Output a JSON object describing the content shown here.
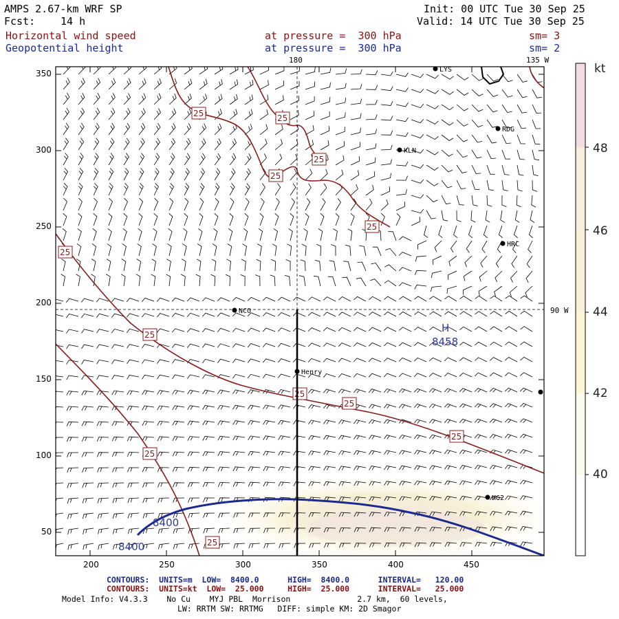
{
  "header": {
    "model": "AMPS 2.67-km WRF SP",
    "forecast_label": "Fcst:",
    "forecast_value": "14 h",
    "init": "Init: 00 UTC Tue 30 Sep 25",
    "valid": "Valid: 14 UTC Tue 30 Sep 25",
    "field1_name": "Horizontal wind speed",
    "field1_level": "at pressure =  300 hPa",
    "field1_sm": "sm= 3",
    "field2_name": "Geopotential height",
    "field2_level": "at pressure =  300 hPa",
    "field2_sm": "sm= 2"
  },
  "map": {
    "lon_label_top": "180",
    "lon_label_135": "135 W",
    "lon_label_90": "90 W",
    "stations": [
      "LYS",
      "RDG",
      "KLN",
      "HRC",
      "NCO",
      "Henry",
      "HG2"
    ],
    "high_label": "H",
    "high_value": "8458",
    "height_contour_labels": [
      "8400",
      "8400"
    ],
    "wind_contour_label": "25",
    "x_ticks": [
      "200",
      "250",
      "300",
      "350",
      "400",
      "450"
    ],
    "y_ticks": [
      "350",
      "300",
      "250",
      "200",
      "150",
      "100",
      "50"
    ]
  },
  "colorbar": {
    "unit": "kt",
    "labels": [
      "48",
      "46",
      "44",
      "42",
      "40"
    ],
    "colors": [
      "#f3dde3",
      "#f7eedd",
      "#f8f0d8",
      "#fbf6d6",
      "#fcfae8",
      "#fdfdf2",
      "#ffffff"
    ]
  },
  "footer": {
    "row1": "CONTOURS:  UNITS=m  LOW=  8400.0      HIGH=  8400.0      INTERVAL=   120.00",
    "row2": "CONTOURS:  UNITS=kt  LOW=  25.000     HIGH=  25.000      INTERVAL=   25.000",
    "model_info": "Model Info: V4.3.3    No Cu    MYJ PBL  Morrison              2.7 km,  60 levels,",
    "physics": "LW: RRTM SW: RRTMG   DIFF: simple KM: 2D Smagor"
  },
  "colors": {
    "height_contour": "#1a2a8f",
    "wind_contour": "#8b1a1a"
  }
}
